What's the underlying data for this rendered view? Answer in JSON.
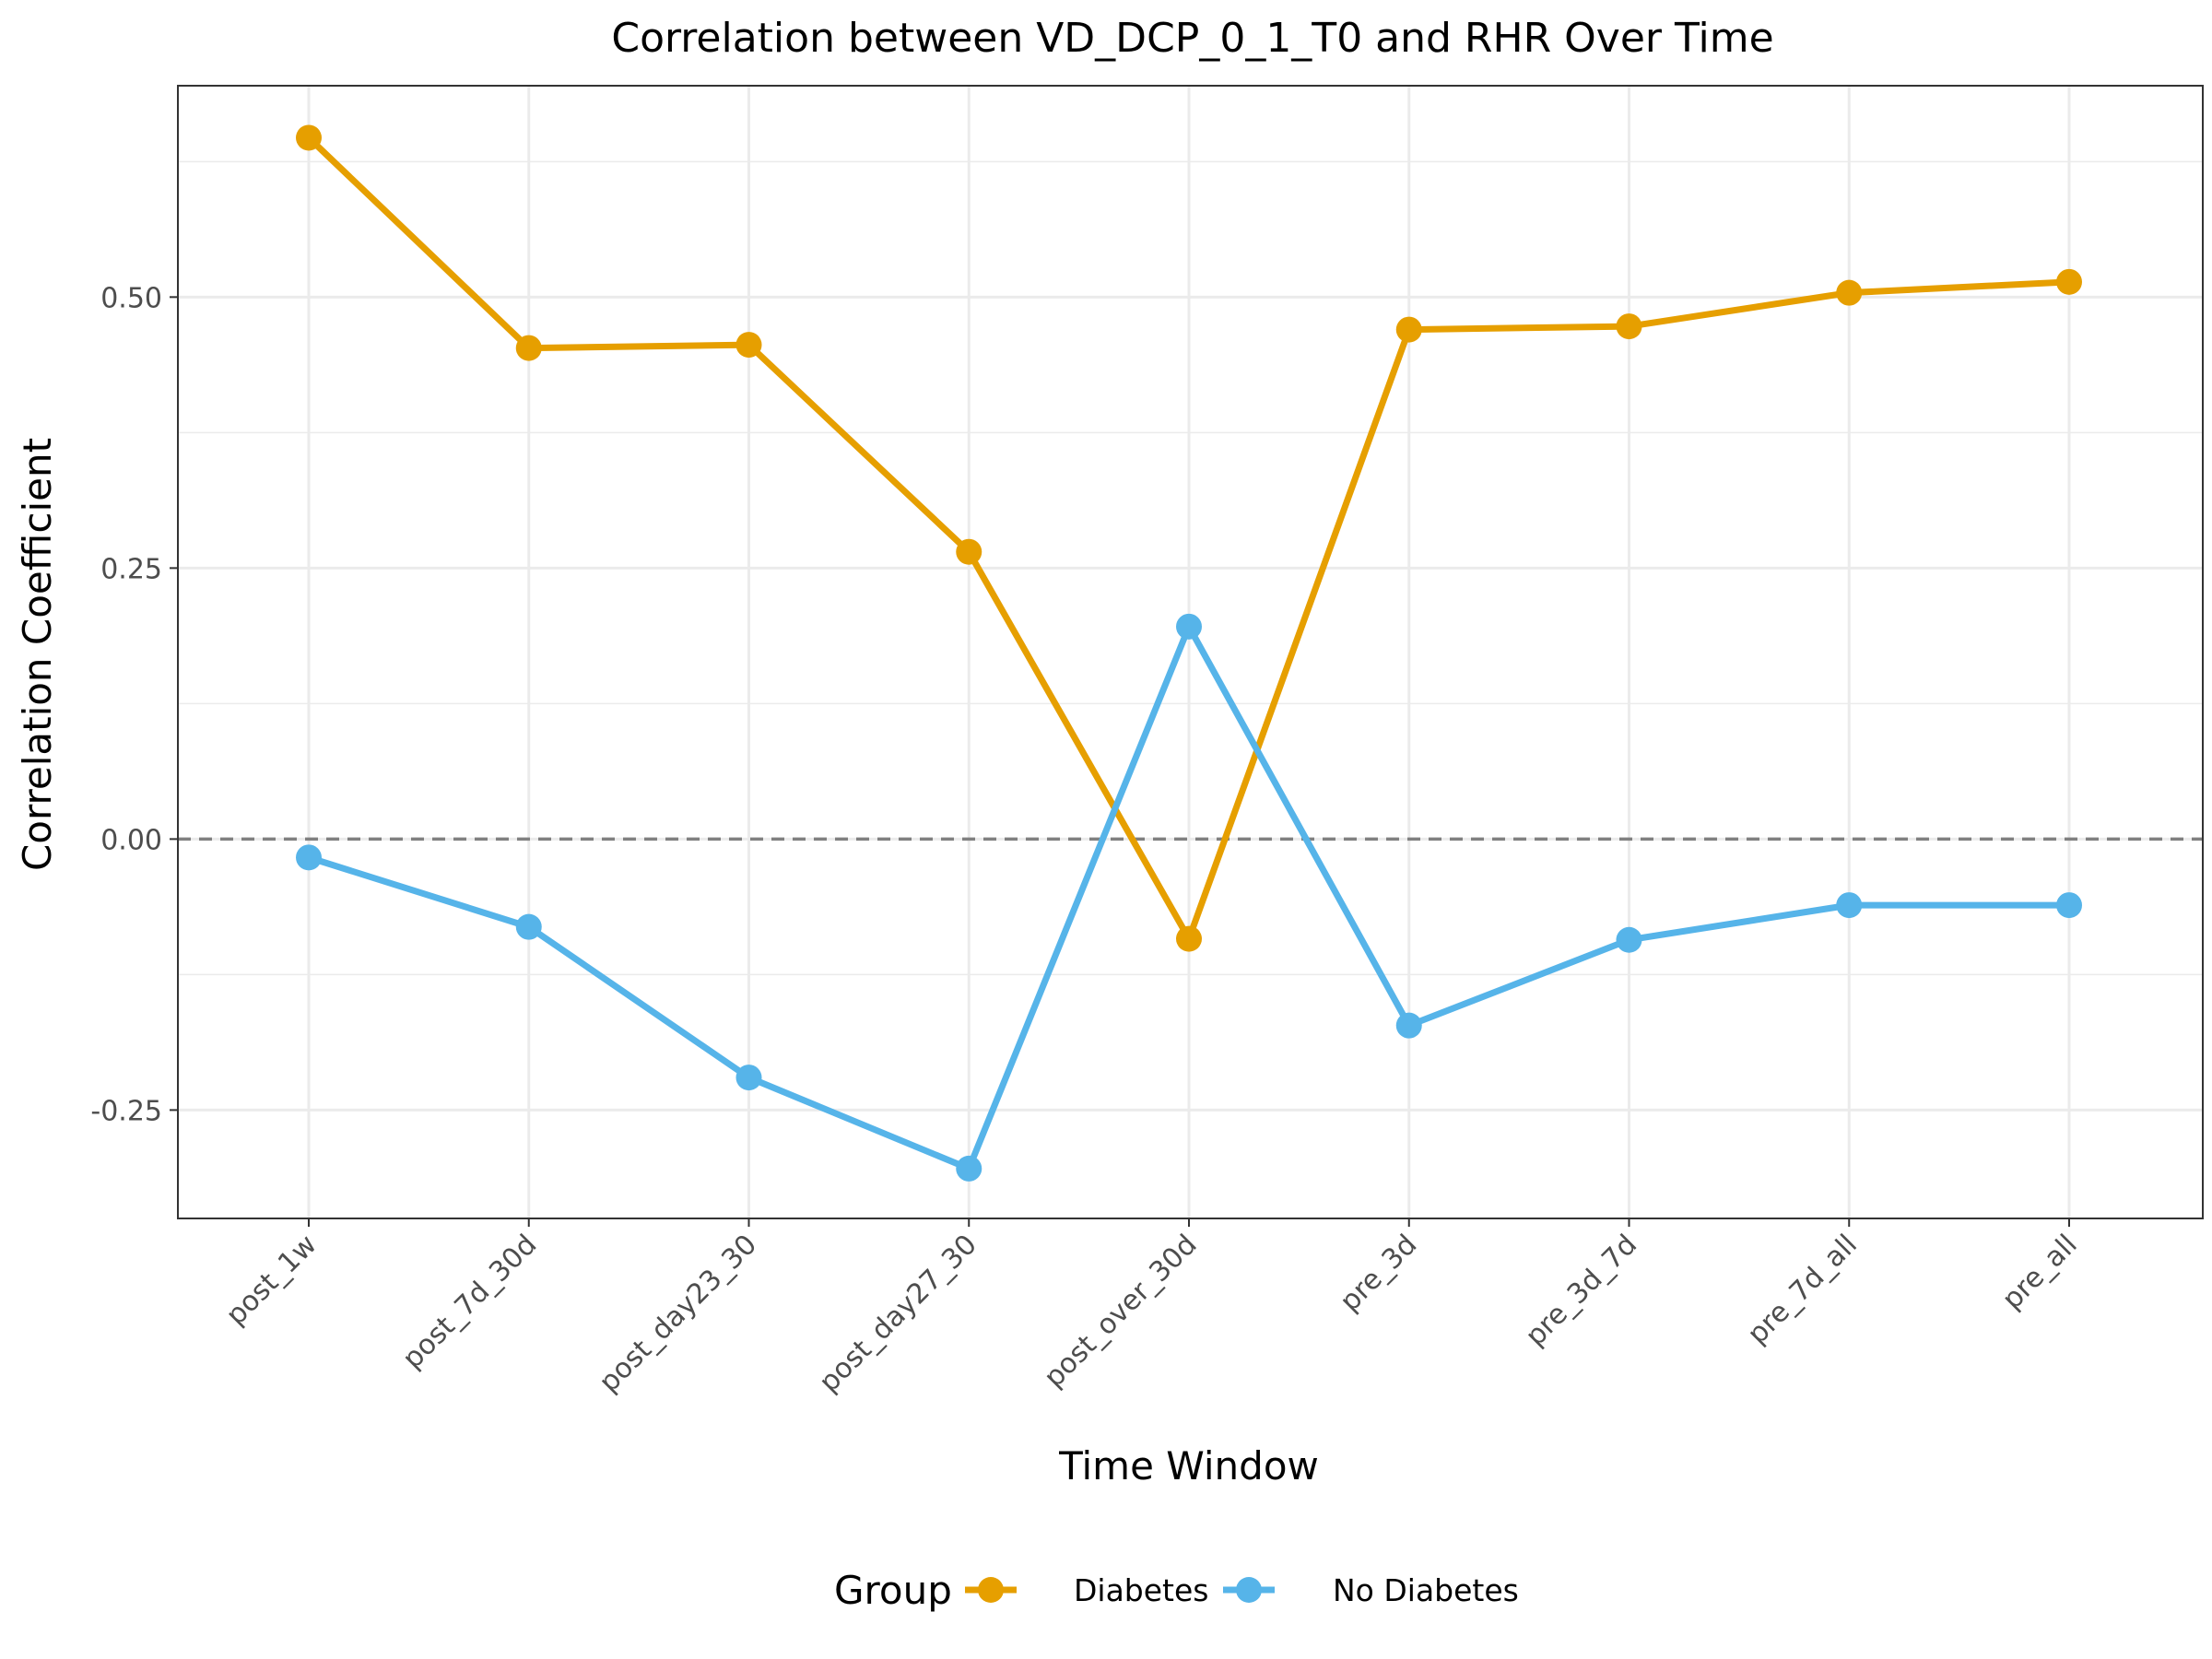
{
  "chart_data": {
    "type": "line",
    "title": "Correlation between VD_DCP_0_1_T0 and RHR Over Time",
    "xlabel": "Time Window",
    "ylabel": "Correlation Coefficient",
    "categories": [
      "post_1w",
      "post_7d_30d",
      "post_day23_30",
      "post_day27_30",
      "post_over_30d",
      "pre_3d",
      "pre_3d_7d",
      "pre_7d_all",
      "pre_all"
    ],
    "series": [
      {
        "name": "Diabetes",
        "color": "#E69F00",
        "values": [
          0.647,
          0.453,
          0.456,
          0.265,
          -0.092,
          0.47,
          0.473,
          0.504,
          0.514
        ]
      },
      {
        "name": "No Diabetes",
        "color": "#56B4E9",
        "values": [
          -0.017,
          -0.081,
          -0.22,
          -0.304,
          0.196,
          -0.172,
          -0.093,
          -0.061,
          -0.061
        ]
      }
    ],
    "ylim": [
      -0.35,
      0.695
    ],
    "yticks": [
      -0.25,
      0,
      0.25,
      0.5
    ],
    "ytick_labels": [
      "-0.25",
      "0.00",
      "0.25",
      "0.50"
    ],
    "reference_line": 0,
    "grid": true,
    "legend": {
      "title": "Group",
      "position": "bottom"
    }
  }
}
